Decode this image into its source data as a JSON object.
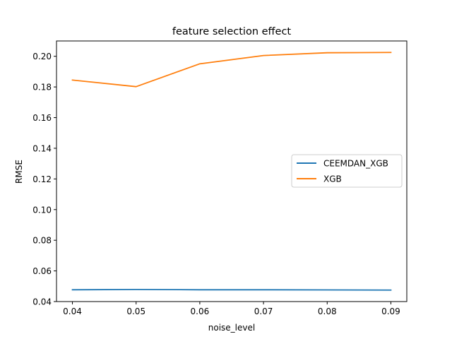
{
  "chart_data": {
    "type": "line",
    "title": "feature selection effect",
    "xlabel": "noise_level",
    "ylabel": "RMSE",
    "x": [
      0.04,
      0.05,
      0.06,
      0.07,
      0.08,
      0.09
    ],
    "xticks": [
      "0.04",
      "0.05",
      "0.06",
      "0.07",
      "0.08",
      "0.09"
    ],
    "yticks": [
      "0.04",
      "0.06",
      "0.08",
      "0.10",
      "0.12",
      "0.14",
      "0.16",
      "0.18",
      "0.20"
    ],
    "xlim": [
      0.0375,
      0.0925
    ],
    "ylim": [
      0.04,
      0.21
    ],
    "grid": false,
    "legend_position": "center-right",
    "series": [
      {
        "name": "CEEMDAN_XGB",
        "color": "#1f77b4",
        "values": [
          0.0477,
          0.0479,
          0.0477,
          0.0477,
          0.0476,
          0.0475
        ]
      },
      {
        "name": "XGB",
        "color": "#ff7f0e",
        "values": [
          0.1845,
          0.1802,
          0.1951,
          0.2005,
          0.2023,
          0.2025
        ]
      }
    ]
  }
}
